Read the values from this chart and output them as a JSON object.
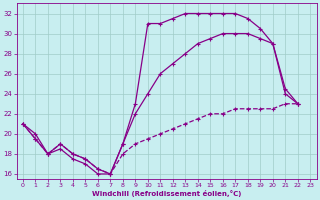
{
  "xlabel": "Windchill (Refroidissement éolien,°C)",
  "background_color": "#c8eef0",
  "grid_color": "#a0ccc8",
  "line_color": "#880088",
  "xlim": [
    -0.5,
    23.5
  ],
  "ylim": [
    15.5,
    33
  ],
  "yticks": [
    16,
    18,
    20,
    22,
    24,
    26,
    28,
    30,
    32
  ],
  "xticks": [
    0,
    1,
    2,
    3,
    4,
    5,
    6,
    7,
    8,
    9,
    10,
    11,
    12,
    13,
    14,
    15,
    16,
    17,
    18,
    19,
    20,
    21,
    22,
    23
  ],
  "curve1_x": [
    0,
    1,
    2,
    3,
    4,
    5,
    6,
    7,
    8,
    9,
    10,
    11,
    12,
    13,
    14,
    15,
    16,
    17,
    18,
    19,
    20,
    21,
    22
  ],
  "curve1_y": [
    21,
    20,
    18,
    18.5,
    17.5,
    17,
    16,
    16,
    19,
    23,
    31,
    31,
    31.5,
    32,
    32,
    32,
    32,
    32,
    31.5,
    30.5,
    29,
    24.5,
    23
  ],
  "curve2_x": [
    0,
    1,
    2,
    3,
    4,
    5,
    6,
    7,
    8,
    9,
    10,
    11,
    12,
    13,
    14,
    15,
    16,
    17,
    18,
    19,
    20,
    21,
    22
  ],
  "curve2_y": [
    21,
    19.5,
    18,
    19,
    18,
    17.5,
    16.5,
    16,
    19,
    22,
    24,
    26,
    27,
    28,
    29,
    29.5,
    30,
    30,
    30,
    29.5,
    29,
    24,
    23
  ],
  "curve3_x": [
    0,
    1,
    2,
    3,
    4,
    5,
    6,
    7,
    8,
    9,
    10,
    11,
    12,
    13,
    14,
    15,
    16,
    17,
    18,
    19,
    20,
    21,
    22
  ],
  "curve3_y": [
    21,
    19.5,
    18,
    19,
    18,
    17.5,
    16.5,
    16,
    18,
    19,
    19.5,
    20,
    20.5,
    21,
    21.5,
    22,
    22,
    22.5,
    22.5,
    22.5,
    22.5,
    23,
    23
  ]
}
